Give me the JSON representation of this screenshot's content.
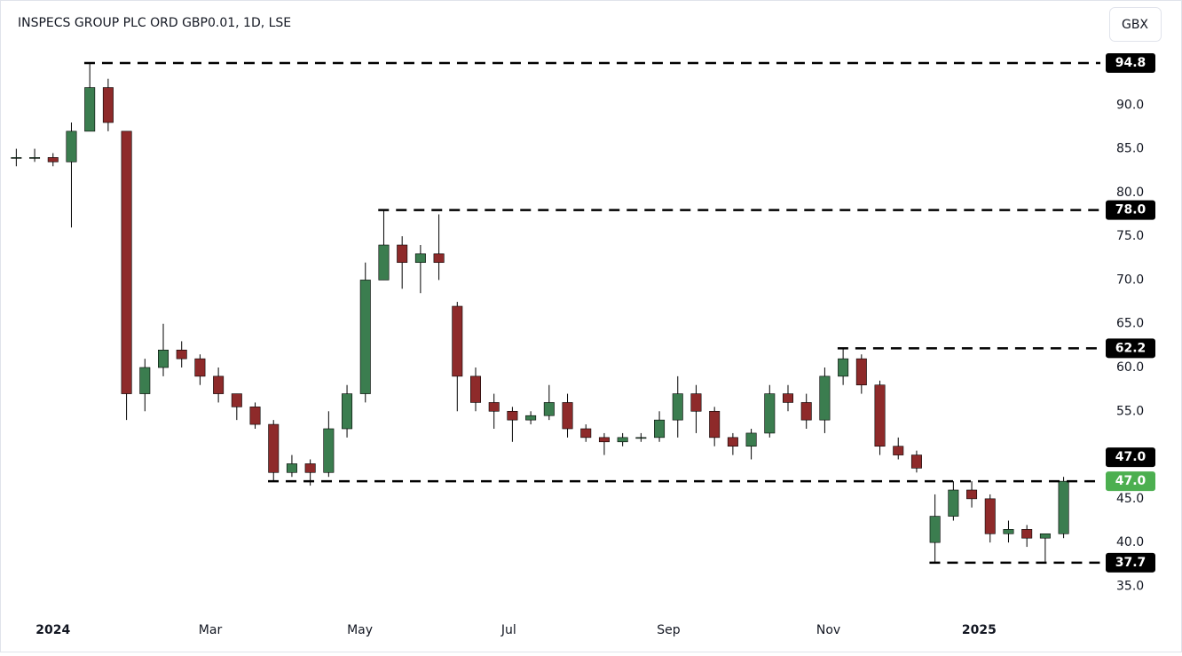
{
  "chart_data": {
    "type": "candlestick",
    "title": "INSPECS GROUP PLC ORD GBP0.01, 1D, LSE",
    "currency": "GBX",
    "up_color": "#3b7d4f",
    "down_color": "#8e2a2a",
    "wick_color": "#000000",
    "last_color": "#4caf50",
    "open": [
      84,
      84,
      84,
      83.5,
      87,
      92,
      87,
      57,
      60,
      62,
      61,
      59,
      57,
      55.5,
      53.5,
      48,
      49,
      48,
      53,
      57,
      70,
      74,
      72,
      73,
      67,
      59,
      56,
      55,
      54,
      54.5,
      56,
      53,
      52,
      51.5,
      52,
      52,
      54,
      57,
      55,
      52,
      51,
      52.5,
      57,
      56,
      54,
      59,
      61,
      58,
      51,
      50,
      40,
      43,
      46,
      45,
      41,
      41.5,
      40.5,
      41
    ],
    "high": [
      85,
      85,
      84.5,
      88,
      94.8,
      93,
      87,
      61,
      65,
      63,
      61.5,
      60,
      57,
      56,
      54,
      50,
      49.5,
      55,
      58,
      72,
      78,
      75,
      74,
      77.5,
      67.5,
      60,
      57,
      55.5,
      55,
      58,
      57,
      53.5,
      52.5,
      52.5,
      52.5,
      55,
      59,
      58,
      55.5,
      52.5,
      53,
      58,
      58,
      57,
      60,
      62.2,
      61.5,
      58.5,
      52,
      50.5,
      45.5,
      47,
      47,
      45.5,
      42.5,
      42,
      41,
      47.5
    ],
    "low": [
      83,
      83.5,
      83,
      76,
      87,
      87,
      54,
      55,
      59,
      60,
      58,
      56,
      54,
      53,
      47,
      47.5,
      46.5,
      47.5,
      52,
      56,
      70,
      69,
      68.5,
      70,
      55,
      55,
      53,
      51.5,
      53.5,
      54,
      52,
      51.5,
      50,
      51,
      51.5,
      51.5,
      52,
      52.5,
      51,
      50,
      49.5,
      52,
      55,
      53,
      52.5,
      58,
      57,
      50,
      49.5,
      48,
      37.7,
      42.5,
      44,
      40,
      40,
      39.5,
      37.8,
      40.5
    ],
    "close": [
      84,
      84,
      83.5,
      87,
      92,
      88,
      57,
      60,
      62,
      61,
      59,
      57,
      55.5,
      53.5,
      48,
      49,
      48,
      53,
      57,
      70,
      74,
      72,
      73,
      72,
      59,
      56,
      55,
      54,
      54.5,
      56,
      53,
      52,
      51.5,
      52,
      52,
      54,
      57,
      55,
      52,
      51,
      52.5,
      57,
      56,
      54,
      59,
      61,
      58,
      51,
      50,
      48.5,
      43,
      46,
      45,
      41,
      41.5,
      40.5,
      41,
      47
    ],
    "close_label": "47.0",
    "xlim": [
      0,
      59.5
    ],
    "xticks": [
      {
        "value": 2.5,
        "label": "2024"
      },
      {
        "value": 11.06,
        "label": "Mar"
      },
      {
        "value": 19.2,
        "label": "May"
      },
      {
        "value": 27.3,
        "label": "Jul"
      },
      {
        "value": 36.0,
        "label": "Sep"
      },
      {
        "value": 44.7,
        "label": "Nov"
      },
      {
        "value": 52.9,
        "label": "2025"
      }
    ],
    "ylim": [
      32,
      102
    ],
    "yticks": [
      {
        "value": 35,
        "label": "35.0"
      },
      {
        "value": 40,
        "label": "40.0"
      },
      {
        "value": 45,
        "label": "45.0"
      },
      {
        "value": 50,
        "label": "50.0"
      },
      {
        "value": 55,
        "label": "55.0"
      },
      {
        "value": 60,
        "label": "60.0"
      },
      {
        "value": 65,
        "label": "65.0"
      },
      {
        "value": 70,
        "label": "70.0"
      },
      {
        "value": 75,
        "label": "75.0"
      },
      {
        "value": 80,
        "label": "80.0"
      },
      {
        "value": 85,
        "label": "85.0"
      },
      {
        "value": 90,
        "label": "90.0"
      }
    ],
    "levels": [
      {
        "value": 94.8,
        "label": "94.8"
      },
      {
        "value": 78.0,
        "label": "78.0"
      },
      {
        "value": 62.2,
        "label": "62.2"
      },
      {
        "value": 47.0,
        "label": "47.0"
      },
      {
        "value": 37.7,
        "label": "37.7"
      }
    ]
  }
}
